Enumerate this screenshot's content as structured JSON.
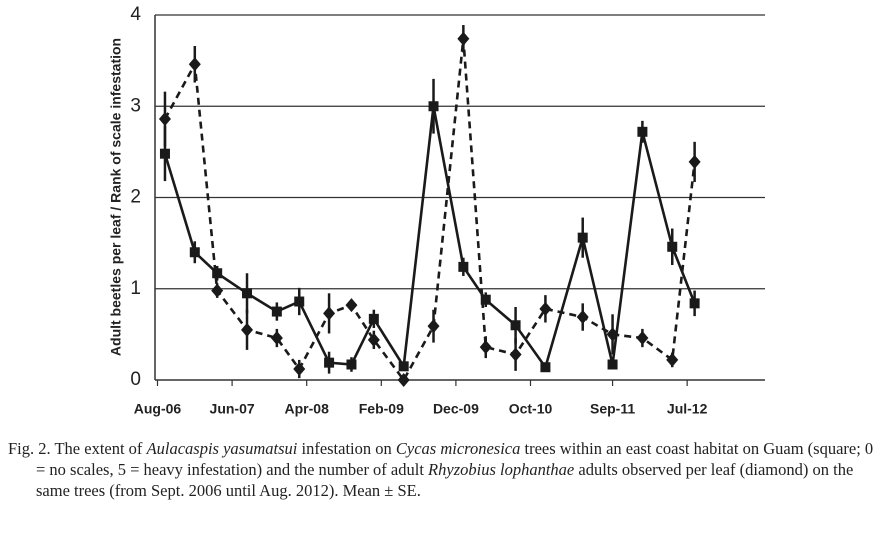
{
  "chart_data": {
    "type": "line",
    "y_label": "Adult beetles per leaf / Rank of scale infestation",
    "x": [
      1,
      5,
      8,
      12,
      16,
      19,
      23,
      26,
      29,
      33,
      37,
      41,
      44,
      48,
      52,
      57,
      61,
      65,
      69,
      72
    ],
    "xlim": [
      0,
      81
    ],
    "xticks": [
      {
        "value": 0,
        "label": "Aug-06"
      },
      {
        "value": 10,
        "label": "Jun-07"
      },
      {
        "value": 20,
        "label": "Apr-08"
      },
      {
        "value": 30,
        "label": "Feb-09"
      },
      {
        "value": 40,
        "label": "Dec-09"
      },
      {
        "value": 50,
        "label": "Oct-10"
      },
      {
        "value": 61,
        "label": "Sep-11"
      },
      {
        "value": 71,
        "label": "Jul-12"
      }
    ],
    "ylim": [
      0,
      4
    ],
    "yticks": [
      0,
      1,
      2,
      3,
      4
    ],
    "grid": true,
    "series": [
      {
        "marker": "square",
        "dashed": false,
        "color": "#1a1a1a",
        "values": [
          2.48,
          1.4,
          1.17,
          0.95,
          0.75,
          0.86,
          0.19,
          0.17,
          0.67,
          0.15,
          3.0,
          1.24,
          0.88,
          0.6,
          0.14,
          1.56,
          0.17,
          2.72,
          1.46,
          0.84
        ],
        "errors": [
          0.3,
          0.12,
          0.08,
          0.22,
          0.1,
          0.15,
          0.12,
          0.08,
          0.1,
          0.05,
          0.3,
          0.1,
          0.08,
          0.2,
          0.03,
          0.22,
          0.05,
          0.12,
          0.2,
          0.14
        ]
      },
      {
        "marker": "diamond",
        "dashed": true,
        "color": "#1a1a1a",
        "values": [
          2.86,
          3.46,
          0.98,
          0.55,
          0.46,
          0.12,
          0.73,
          0.82,
          0.44,
          0.0,
          0.59,
          3.74,
          0.36,
          0.28,
          0.78,
          0.69,
          0.5,
          0.46,
          0.22,
          2.39
        ],
        "errors": [
          0.3,
          0.2,
          0.08,
          0.22,
          0.1,
          0.1,
          0.22,
          0.03,
          0.1,
          0.05,
          0.18,
          0.15,
          0.12,
          0.18,
          0.15,
          0.15,
          0.22,
          0.1,
          0.08,
          0.22
        ]
      }
    ]
  },
  "caption": [
    {
      "text": "Fig. 2. The extent of ",
      "italic": false
    },
    {
      "text": "Aulacaspis yasumatsui",
      "italic": true
    },
    {
      "text": " infestation on ",
      "italic": false
    },
    {
      "text": "Cycas micronesica",
      "italic": true
    },
    {
      "text": " trees within an east coast habitat on Guam (square; 0 = no scales, 5 = heavy infestation) and the number of adult ",
      "italic": false
    },
    {
      "text": "Rhyzobius lophanthae",
      "italic": true
    },
    {
      "text": " adults observed per leaf (diamond) on the same trees (from Sept. 2006 until Aug. 2012). Mean ± SE.",
      "italic": false
    }
  ]
}
